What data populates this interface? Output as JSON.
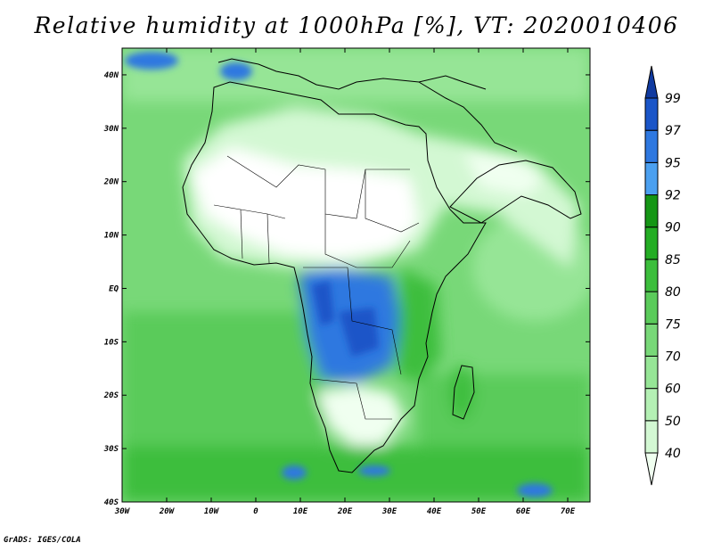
{
  "title": "Relative humidity at 1000hPa [%], VT: 2020010406",
  "credit": "GrADS: IGES/COLA",
  "map": {
    "lon_range": [
      -30,
      75
    ],
    "lat_range": [
      -40,
      45
    ],
    "lon_ticks": [
      {
        "value": -30,
        "label": "30W"
      },
      {
        "value": -20,
        "label": "20W"
      },
      {
        "value": -10,
        "label": "10W"
      },
      {
        "value": 0,
        "label": "0"
      },
      {
        "value": 10,
        "label": "10E"
      },
      {
        "value": 20,
        "label": "20E"
      },
      {
        "value": 30,
        "label": "30E"
      },
      {
        "value": 40,
        "label": "40E"
      },
      {
        "value": 50,
        "label": "50E"
      },
      {
        "value": 60,
        "label": "60E"
      },
      {
        "value": 70,
        "label": "70E"
      }
    ],
    "lat_ticks": [
      {
        "value": 40,
        "label": "40N"
      },
      {
        "value": 30,
        "label": "30N"
      },
      {
        "value": 20,
        "label": "20N"
      },
      {
        "value": 10,
        "label": "10N"
      },
      {
        "value": 0,
        "label": "EQ"
      },
      {
        "value": -10,
        "label": "10S"
      },
      {
        "value": -20,
        "label": "20S"
      },
      {
        "value": -30,
        "label": "30S"
      },
      {
        "value": -40,
        "label": "40S"
      }
    ]
  },
  "colorbar": {
    "levels": [
      "40",
      "50",
      "60",
      "70",
      "75",
      "80",
      "85",
      "90",
      "92",
      "95",
      "97",
      "99"
    ],
    "colors": [
      "#f0fff0",
      "#d3f8d3",
      "#b4f0b4",
      "#96e596",
      "#78d878",
      "#5acb5a",
      "#3cbe3c",
      "#24ad24",
      "#159615",
      "#4ba0f0",
      "#2e78e0",
      "#1a55c8",
      "#103aa0"
    ]
  }
}
